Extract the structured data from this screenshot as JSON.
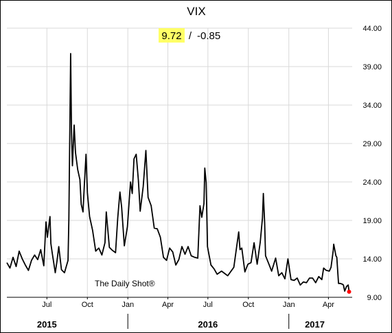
{
  "chart_data": {
    "type": "line",
    "title": "VIX",
    "last_value": "9.72",
    "change": "-0.85",
    "separator": "/",
    "watermark": "The Daily Shot®",
    "ylim": [
      9,
      44
    ],
    "y_ticks": [
      "44.00",
      "39.00",
      "34.00",
      "29.00",
      "24.00",
      "19.00",
      "14.00",
      "9.00"
    ],
    "grid": true,
    "x_ticks": [
      "Jul",
      "Oct",
      "Jan",
      "Apr",
      "Jul",
      "Oct",
      "Jan",
      "Apr"
    ],
    "x_tick_dates": [
      "2015-07-01",
      "2015-10-01",
      "2016-01-01",
      "2016-04-01",
      "2016-07-01",
      "2016-10-01",
      "2017-01-01",
      "2017-04-01"
    ],
    "years": [
      "2015",
      "2016",
      "2017"
    ],
    "year_dates": [
      "2015-07-01",
      "2016-07-01",
      "2017-03-01"
    ],
    "year_separator_dates": [
      "2016-01-01",
      "2017-01-01"
    ],
    "xlim": [
      "2015-04-01",
      "2017-05-25"
    ],
    "colors": {
      "line": "#000000",
      "highlight": "#ffff66",
      "marker": "#ff0000",
      "grid": "#d9d9d9"
    },
    "series": [
      {
        "points": [
          [
            "2015-04-01",
            13.5
          ],
          [
            "2015-04-08",
            12.8
          ],
          [
            "2015-04-15",
            14.2
          ],
          [
            "2015-04-22",
            13.0
          ],
          [
            "2015-04-29",
            15.0
          ],
          [
            "2015-05-06",
            14.0
          ],
          [
            "2015-05-13",
            13.2
          ],
          [
            "2015-05-20",
            12.5
          ],
          [
            "2015-05-27",
            13.8
          ],
          [
            "2015-06-03",
            14.5
          ],
          [
            "2015-06-10",
            13.9
          ],
          [
            "2015-06-17",
            15.2
          ],
          [
            "2015-06-24",
            13.1
          ],
          [
            "2015-06-29",
            18.8
          ],
          [
            "2015-07-02",
            16.8
          ],
          [
            "2015-07-08",
            19.5
          ],
          [
            "2015-07-10",
            16.0
          ],
          [
            "2015-07-13",
            14.8
          ],
          [
            "2015-07-20",
            12.2
          ],
          [
            "2015-07-24",
            13.7
          ],
          [
            "2015-07-28",
            15.6
          ],
          [
            "2015-08-03",
            12.6
          ],
          [
            "2015-08-10",
            12.2
          ],
          [
            "2015-08-18",
            13.8
          ],
          [
            "2015-08-20",
            19.1
          ],
          [
            "2015-08-24",
            40.7
          ],
          [
            "2015-08-26",
            30.3
          ],
          [
            "2015-08-28",
            26.1
          ],
          [
            "2015-09-01",
            31.4
          ],
          [
            "2015-09-04",
            27.8
          ],
          [
            "2015-09-09",
            25.6
          ],
          [
            "2015-09-14",
            24.3
          ],
          [
            "2015-09-17",
            21.1
          ],
          [
            "2015-09-21",
            20.1
          ],
          [
            "2015-09-24",
            23.5
          ],
          [
            "2015-09-28",
            27.6
          ],
          [
            "2015-10-01",
            22.6
          ],
          [
            "2015-10-06",
            19.5
          ],
          [
            "2015-10-13",
            17.7
          ],
          [
            "2015-10-20",
            15.0
          ],
          [
            "2015-10-27",
            15.4
          ],
          [
            "2015-11-03",
            14.5
          ],
          [
            "2015-11-10",
            16.1
          ],
          [
            "2015-11-13",
            20.1
          ],
          [
            "2015-11-20",
            15.5
          ],
          [
            "2015-11-27",
            15.1
          ],
          [
            "2015-12-04",
            14.8
          ],
          [
            "2015-12-09",
            19.3
          ],
          [
            "2015-12-14",
            22.7
          ],
          [
            "2015-12-18",
            20.7
          ],
          [
            "2015-12-24",
            15.7
          ],
          [
            "2015-12-31",
            18.2
          ],
          [
            "2016-01-07",
            24.0
          ],
          [
            "2016-01-11",
            22.5
          ],
          [
            "2016-01-15",
            27.0
          ],
          [
            "2016-01-20",
            27.6
          ],
          [
            "2016-01-25",
            24.2
          ],
          [
            "2016-01-29",
            20.2
          ],
          [
            "2016-02-05",
            23.4
          ],
          [
            "2016-02-11",
            28.1
          ],
          [
            "2016-02-16",
            22.0
          ],
          [
            "2016-02-23",
            20.9
          ],
          [
            "2016-03-01",
            18.0
          ],
          [
            "2016-03-08",
            17.9
          ],
          [
            "2016-03-15",
            16.8
          ],
          [
            "2016-03-22",
            14.2
          ],
          [
            "2016-03-29",
            13.8
          ],
          [
            "2016-04-05",
            15.4
          ],
          [
            "2016-04-12",
            14.9
          ],
          [
            "2016-04-19",
            13.2
          ],
          [
            "2016-04-26",
            13.9
          ],
          [
            "2016-05-03",
            15.6
          ],
          [
            "2016-05-10",
            14.6
          ],
          [
            "2016-05-17",
            15.6
          ],
          [
            "2016-05-24",
            14.4
          ],
          [
            "2016-06-01",
            14.2
          ],
          [
            "2016-06-08",
            14.1
          ],
          [
            "2016-06-13",
            20.9
          ],
          [
            "2016-06-17",
            19.4
          ],
          [
            "2016-06-22",
            21.2
          ],
          [
            "2016-06-24",
            25.8
          ],
          [
            "2016-06-27",
            23.9
          ],
          [
            "2016-06-30",
            15.6
          ],
          [
            "2016-07-08",
            13.2
          ],
          [
            "2016-07-15",
            12.7
          ],
          [
            "2016-07-22",
            12.0
          ],
          [
            "2016-08-01",
            12.4
          ],
          [
            "2016-08-15",
            11.8
          ],
          [
            "2016-08-29",
            12.9
          ],
          [
            "2016-09-09",
            17.5
          ],
          [
            "2016-09-12",
            15.2
          ],
          [
            "2016-09-16",
            15.4
          ],
          [
            "2016-09-23",
            12.3
          ],
          [
            "2016-09-30",
            13.3
          ],
          [
            "2016-10-07",
            13.5
          ],
          [
            "2016-10-14",
            16.1
          ],
          [
            "2016-10-21",
            13.3
          ],
          [
            "2016-10-28",
            16.2
          ],
          [
            "2016-11-02",
            19.3
          ],
          [
            "2016-11-04",
            22.5
          ],
          [
            "2016-11-07",
            18.7
          ],
          [
            "2016-11-09",
            14.4
          ],
          [
            "2016-11-16",
            13.4
          ],
          [
            "2016-11-23",
            12.4
          ],
          [
            "2016-12-02",
            14.1
          ],
          [
            "2016-12-09",
            11.8
          ],
          [
            "2016-12-16",
            12.2
          ],
          [
            "2016-12-23",
            11.4
          ],
          [
            "2016-12-30",
            14.0
          ],
          [
            "2017-01-06",
            11.3
          ],
          [
            "2017-01-13",
            11.2
          ],
          [
            "2017-01-20",
            11.5
          ],
          [
            "2017-01-27",
            10.6
          ],
          [
            "2017-02-03",
            11.0
          ],
          [
            "2017-02-10",
            10.9
          ],
          [
            "2017-02-17",
            11.5
          ],
          [
            "2017-02-24",
            11.5
          ],
          [
            "2017-03-03",
            10.9
          ],
          [
            "2017-03-10",
            11.7
          ],
          [
            "2017-03-17",
            11.3
          ],
          [
            "2017-03-21",
            12.8
          ],
          [
            "2017-03-27",
            12.5
          ],
          [
            "2017-04-03",
            12.4
          ],
          [
            "2017-04-07",
            12.9
          ],
          [
            "2017-04-12",
            15.1
          ],
          [
            "2017-04-13",
            15.9
          ],
          [
            "2017-04-18",
            14.4
          ],
          [
            "2017-04-20",
            14.2
          ],
          [
            "2017-04-24",
            10.8
          ],
          [
            "2017-04-28",
            10.8
          ],
          [
            "2017-05-03",
            10.7
          ],
          [
            "2017-05-05",
            10.6
          ],
          [
            "2017-05-08",
            9.8
          ],
          [
            "2017-05-12",
            10.4
          ],
          [
            "2017-05-16",
            10.6
          ],
          [
            "2017-05-18",
            9.72
          ]
        ]
      }
    ]
  }
}
